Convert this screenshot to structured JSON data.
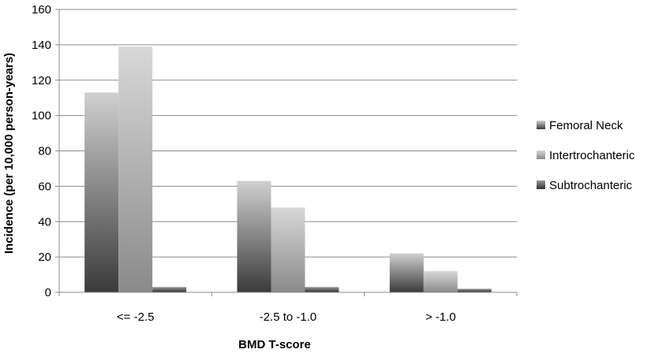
{
  "chart_data": {
    "type": "bar",
    "title": "",
    "xlabel": "BMD T-score",
    "ylabel": "Incidence (per 10,000 person-years)",
    "categories": [
      "<= -2.5",
      "-2.5 to -1.0",
      "> -1.0"
    ],
    "series": [
      {
        "name": "Femoral Neck",
        "values": [
          113,
          63,
          22
        ]
      },
      {
        "name": "Intertrochanteric",
        "values": [
          139,
          48,
          12
        ]
      },
      {
        "name": "Subtrochanteric",
        "values": [
          3,
          3,
          2
        ]
      }
    ],
    "ylim": [
      0,
      160
    ],
    "yticks": [
      "0",
      "20",
      "40",
      "60",
      "80",
      "100",
      "120",
      "140",
      "160"
    ],
    "grid": true,
    "legend_position": "right",
    "colors": {
      "Femoral Neck": [
        "#d0d0d0",
        "#3a3a3a"
      ],
      "Intertrochanteric": [
        "#d8d8d8",
        "#8a8a8a"
      ],
      "Subtrochanteric": [
        "#9a9a9a",
        "#2e2e2e"
      ]
    }
  }
}
